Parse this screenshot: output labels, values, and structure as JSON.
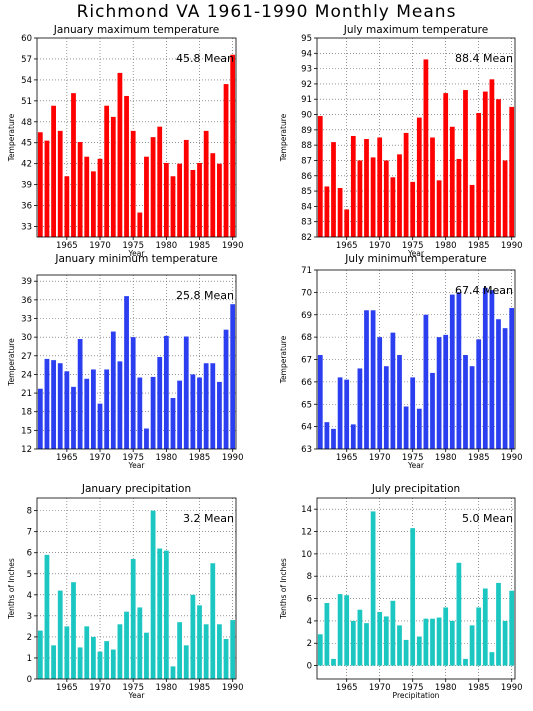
{
  "title": "Richmond VA  1961-1990 Monthly Means",
  "colors": {
    "red": "#ff0000",
    "blue": "#2b3ff0",
    "teal": "#1cc7c2"
  },
  "chart_data": [
    {
      "id": "jan-max",
      "type": "bar",
      "title": "January maximum temperature",
      "annotation": "45.8  Mean",
      "ylabel": "Temperature",
      "xlabel": "Year",
      "color": "#ff0000",
      "ylim": [
        31.5,
        60
      ],
      "yticks": [
        33,
        36,
        39,
        42,
        45,
        48,
        51,
        54,
        57,
        60
      ],
      "xlim": [
        1960.5,
        1990.5
      ],
      "xticks": [
        1965,
        1970,
        1975,
        1980,
        1985,
        1990
      ],
      "x": [
        1961,
        1962,
        1963,
        1964,
        1965,
        1966,
        1967,
        1968,
        1969,
        1970,
        1971,
        1972,
        1973,
        1974,
        1975,
        1976,
        1977,
        1978,
        1979,
        1980,
        1981,
        1982,
        1983,
        1984,
        1985,
        1986,
        1987,
        1988,
        1989,
        1990
      ],
      "values": [
        46.5,
        45.3,
        50.3,
        46.7,
        40.2,
        52.1,
        45.1,
        43.0,
        40.9,
        42.7,
        50.3,
        48.7,
        55.0,
        51.7,
        46.7,
        35.0,
        43.0,
        45.8,
        47.3,
        42.1,
        40.2,
        42.0,
        45.4,
        41.1,
        42.1,
        46.7,
        43.5,
        42.0,
        53.4,
        57.6
      ]
    },
    {
      "id": "jul-max",
      "type": "bar",
      "title": "July maximum temperature",
      "annotation": "88.4  Mean",
      "ylabel": "Temperature",
      "xlabel": "Year",
      "color": "#ff0000",
      "ylim": [
        82,
        95
      ],
      "yticks": [
        82,
        83,
        84,
        85,
        86,
        87,
        88,
        89,
        90,
        91,
        92,
        93,
        94,
        95
      ],
      "xlim": [
        1960.5,
        1990.5
      ],
      "xticks": [
        1965,
        1970,
        1975,
        1980,
        1985,
        1990
      ],
      "x": [
        1961,
        1962,
        1963,
        1964,
        1965,
        1966,
        1967,
        1968,
        1969,
        1970,
        1971,
        1972,
        1973,
        1974,
        1975,
        1976,
        1977,
        1978,
        1979,
        1980,
        1981,
        1982,
        1983,
        1984,
        1985,
        1986,
        1987,
        1988,
        1989,
        1990
      ],
      "values": [
        89.9,
        85.3,
        88.2,
        85.2,
        83.8,
        88.6,
        87.0,
        88.4,
        87.2,
        88.5,
        87.0,
        85.9,
        87.4,
        88.8,
        85.6,
        89.8,
        93.6,
        88.5,
        85.7,
        91.4,
        89.2,
        87.1,
        91.6,
        85.4,
        90.1,
        91.5,
        92.3,
        91.0,
        87.0,
        90.5
      ]
    },
    {
      "id": "jan-min",
      "type": "bar",
      "title": "January minimum temperature",
      "annotation": "25.8  Mean",
      "ylabel": "Temperature",
      "xlabel": "Year",
      "color": "#2b3ff0",
      "ylim": [
        12,
        40
      ],
      "yticks": [
        12,
        15,
        18,
        21,
        24,
        27,
        30,
        33,
        36,
        39
      ],
      "xlim": [
        1960.5,
        1990.5
      ],
      "xticks": [
        1965,
        1970,
        1975,
        1980,
        1985,
        1990
      ],
      "x": [
        1961,
        1962,
        1963,
        1964,
        1965,
        1966,
        1967,
        1968,
        1969,
        1970,
        1971,
        1972,
        1973,
        1974,
        1975,
        1976,
        1977,
        1978,
        1979,
        1980,
        1981,
        1982,
        1983,
        1984,
        1985,
        1986,
        1987,
        1988,
        1989,
        1990
      ],
      "values": [
        21.7,
        26.5,
        26.3,
        25.8,
        24.5,
        22.0,
        29.7,
        23.3,
        24.8,
        19.3,
        24.8,
        30.9,
        26.1,
        36.6,
        30.0,
        23.5,
        15.3,
        23.6,
        26.8,
        30.2,
        20.2,
        23.0,
        30.1,
        24.0,
        23.5,
        25.8,
        25.8,
        22.8,
        31.2,
        35.3
      ]
    },
    {
      "id": "jul-min",
      "type": "bar",
      "title": "July minimum temperature",
      "annotation": "67.4  Mean",
      "ylabel": "Temperature",
      "xlabel": "Year",
      "color": "#2b3ff0",
      "ylim": [
        63,
        71
      ],
      "yticks": [
        63,
        64,
        65,
        66,
        67,
        68,
        69,
        70,
        71
      ],
      "xlim": [
        1960.5,
        1990.5
      ],
      "xticks": [
        1965,
        1970,
        1975,
        1980,
        1985,
        1990
      ],
      "x": [
        1961,
        1962,
        1963,
        1964,
        1965,
        1966,
        1967,
        1968,
        1969,
        1970,
        1971,
        1972,
        1973,
        1974,
        1975,
        1976,
        1977,
        1978,
        1979,
        1980,
        1981,
        1982,
        1983,
        1984,
        1985,
        1986,
        1987,
        1988,
        1989,
        1990
      ],
      "values": [
        67.2,
        64.2,
        63.9,
        66.2,
        66.1,
        64.1,
        66.6,
        69.2,
        69.2,
        68.0,
        66.7,
        68.2,
        67.2,
        64.9,
        66.2,
        64.8,
        69.0,
        66.4,
        68.0,
        68.1,
        69.9,
        70.0,
        67.2,
        66.7,
        67.9,
        70.2,
        70.1,
        68.8,
        68.4,
        69.3
      ]
    },
    {
      "id": "jan-precip",
      "type": "bar",
      "title": "January precipitation",
      "annotation": "3.2  Mean",
      "ylabel": "Tenths of Inches",
      "xlabel": "Year",
      "color": "#1cc7c2",
      "ylim": [
        0,
        8.6
      ],
      "yticks": [
        0,
        1,
        2,
        3,
        4,
        5,
        6,
        7,
        8
      ],
      "xlim": [
        1960.5,
        1990.5
      ],
      "xticks": [
        1965,
        1970,
        1975,
        1980,
        1985,
        1990
      ],
      "x": [
        1961,
        1962,
        1963,
        1964,
        1965,
        1966,
        1967,
        1968,
        1969,
        1970,
        1971,
        1972,
        1973,
        1974,
        1975,
        1976,
        1977,
        1978,
        1979,
        1980,
        1981,
        1982,
        1983,
        1984,
        1985,
        1986,
        1987,
        1988,
        1989,
        1990
      ],
      "values": [
        2.3,
        5.9,
        1.6,
        4.2,
        2.5,
        4.6,
        1.5,
        2.5,
        2.0,
        1.3,
        1.8,
        1.4,
        2.6,
        3.2,
        5.7,
        3.4,
        2.2,
        8.0,
        6.2,
        6.1,
        0.6,
        2.7,
        1.6,
        4.0,
        3.5,
        2.6,
        5.5,
        2.6,
        1.9,
        2.8
      ]
    },
    {
      "id": "jul-precip",
      "type": "bar",
      "title": "July precipitation",
      "annotation": "5.0  Mean",
      "ylabel": "Tenths of Inches",
      "xlabel": "Precipitation",
      "color": "#1cc7c2",
      "ylim": [
        -1.2,
        15
      ],
      "yticks": [
        0,
        2,
        4,
        6,
        8,
        10,
        12,
        14
      ],
      "xlim": [
        1960.5,
        1990.5
      ],
      "xticks": [
        1965,
        1970,
        1975,
        1980,
        1985,
        1990
      ],
      "x": [
        1961,
        1962,
        1963,
        1964,
        1965,
        1966,
        1967,
        1968,
        1969,
        1970,
        1971,
        1972,
        1973,
        1974,
        1975,
        1976,
        1977,
        1978,
        1979,
        1980,
        1981,
        1982,
        1983,
        1984,
        1985,
        1986,
        1987,
        1988,
        1989,
        1990
      ],
      "values": [
        2.8,
        5.6,
        0.6,
        6.4,
        6.3,
        4.0,
        5.0,
        3.8,
        13.8,
        4.8,
        4.4,
        5.8,
        3.6,
        2.3,
        12.3,
        2.6,
        4.2,
        4.2,
        4.3,
        5.2,
        4.0,
        9.2,
        0.6,
        3.6,
        5.2,
        6.9,
        1.2,
        7.4,
        4.0,
        6.7
      ]
    }
  ]
}
